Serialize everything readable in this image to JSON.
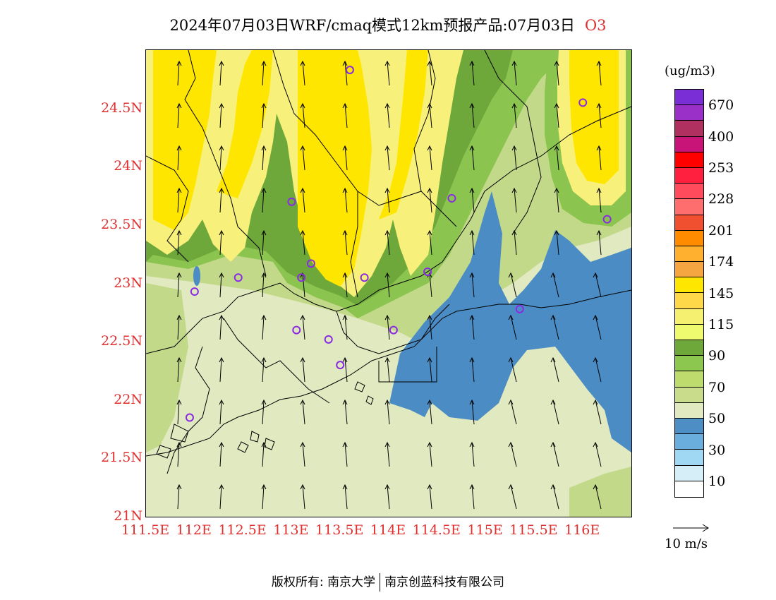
{
  "title": {
    "text": "2024年07月03日WRF/cmaq模式12km预报产品:07月03日",
    "species": "O3"
  },
  "map": {
    "lon_range": [
      111.5,
      116.5
    ],
    "lat_range": [
      21,
      25
    ],
    "lat_labels": [
      {
        "value": 24.5,
        "text": "24.5N"
      },
      {
        "value": 24,
        "text": "24N"
      },
      {
        "value": 23.5,
        "text": "23.5N"
      },
      {
        "value": 23,
        "text": "23N"
      },
      {
        "value": 22.5,
        "text": "22.5N"
      },
      {
        "value": 22,
        "text": "22N"
      },
      {
        "value": 21.5,
        "text": "21.5N"
      },
      {
        "value": 21,
        "text": "21N"
      }
    ],
    "lon_labels": [
      {
        "value": 111.5,
        "text": "111.5E"
      },
      {
        "value": 112,
        "text": "112E"
      },
      {
        "value": 112.5,
        "text": "112.5E"
      },
      {
        "value": 113,
        "text": "113E"
      },
      {
        "value": 113.5,
        "text": "113.5E"
      },
      {
        "value": 114,
        "text": "114E"
      },
      {
        "value": 114.5,
        "text": "114.5E"
      },
      {
        "value": 115,
        "text": "115E"
      },
      {
        "value": 115.5,
        "text": "115.5E"
      },
      {
        "value": 116,
        "text": "116E"
      }
    ],
    "stations": [
      {
        "lon": 113.6,
        "lat": 24.83
      },
      {
        "lon": 116.0,
        "lat": 24.55
      },
      {
        "lon": 113.0,
        "lat": 23.7
      },
      {
        "lon": 114.65,
        "lat": 23.73
      },
      {
        "lon": 116.25,
        "lat": 23.55
      },
      {
        "lon": 113.2,
        "lat": 23.17
      },
      {
        "lon": 112.45,
        "lat": 23.05
      },
      {
        "lon": 113.1,
        "lat": 23.05
      },
      {
        "lon": 113.75,
        "lat": 23.05
      },
      {
        "lon": 114.4,
        "lat": 23.1
      },
      {
        "lon": 112.0,
        "lat": 22.93
      },
      {
        "lon": 115.35,
        "lat": 22.78
      },
      {
        "lon": 113.05,
        "lat": 22.6
      },
      {
        "lon": 114.05,
        "lat": 22.6
      },
      {
        "lon": 113.38,
        "lat": 22.52
      },
      {
        "lon": 113.5,
        "lat": 22.3
      },
      {
        "lon": 111.95,
        "lat": 21.85
      }
    ]
  },
  "colorbar": {
    "unit": "(ug/m3)",
    "colors": [
      "#7a2fd6",
      "#9a30c8",
      "#b03060",
      "#c81478",
      "#ff0000",
      "#ff2040",
      "#ff4b5c",
      "#ff6e6e",
      "#f05030",
      "#ff8c00",
      "#ffb02e",
      "#f5a640",
      "#ffe600",
      "#ffd84a",
      "#f5f070",
      "#f0fa6e",
      "#6fa83a",
      "#8cc850",
      "#bedc6e",
      "#c8dc8c",
      "#e1e9c0",
      "#4d8fc4",
      "#6aaedd",
      "#a0d7f2",
      "#d6eef8",
      "#ffffff"
    ],
    "labels": [
      {
        "idx": 1,
        "text": "670"
      },
      {
        "idx": 3,
        "text": "400"
      },
      {
        "idx": 5,
        "text": "253"
      },
      {
        "idx": 7,
        "text": "228"
      },
      {
        "idx": 9,
        "text": "201"
      },
      {
        "idx": 11,
        "text": "174"
      },
      {
        "idx": 13,
        "text": "145"
      },
      {
        "idx": 15,
        "text": "115"
      },
      {
        "idx": 17,
        "text": "90"
      },
      {
        "idx": 19,
        "text": "70"
      },
      {
        "idx": 21,
        "text": "50"
      },
      {
        "idx": 23,
        "text": "30"
      },
      {
        "idx": 25,
        "text": "10"
      }
    ]
  },
  "wind_reference": "10 m/s",
  "copyright": {
    "left": "版权所有: 南京大学",
    "right": "南京创蓝科技有限公司"
  },
  "colors": {
    "axis_label": "#e03030",
    "ocean": "#4a8cc3",
    "low": "#e1e9c0",
    "mid": "#c3d98a",
    "green": "#8cc450",
    "dark_green": "#6fa83a",
    "yellow": "#f7f07a",
    "yellow_strong": "#ffe600",
    "station": "#8a2be2"
  }
}
